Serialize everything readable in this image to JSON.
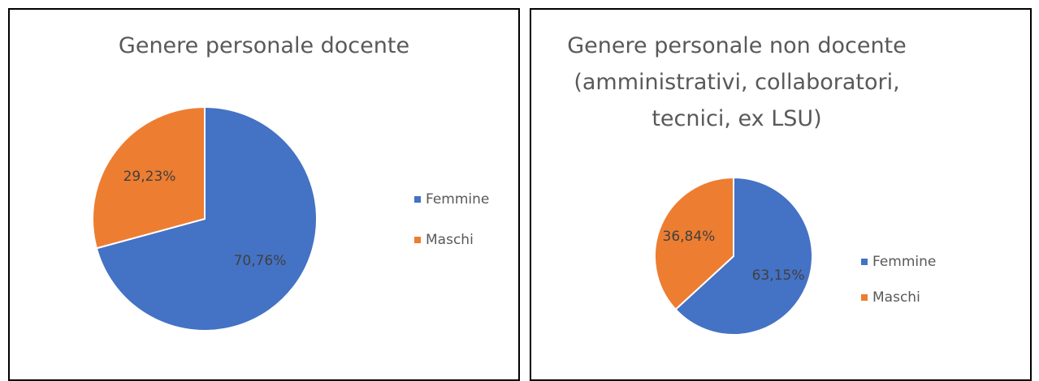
{
  "chart_data": [
    {
      "type": "pie",
      "title": "Genere personale docente",
      "categories": [
        "Femmine",
        "Maschi"
      ],
      "values": [
        70.76,
        29.23
      ],
      "value_labels": [
        "70,76%",
        "29,23%"
      ],
      "colors": [
        "#4472c4",
        "#ed7d31"
      ],
      "legend": "right"
    },
    {
      "type": "pie",
      "title": "Genere personale non docente (amministrativi, collaboratori, tecnici, ex LSU)",
      "categories": [
        "Femmine",
        "Maschi"
      ],
      "values": [
        63.15,
        36.84
      ],
      "value_labels": [
        "63,15%",
        "36,84%"
      ],
      "colors": [
        "#4472c4",
        "#ed7d31"
      ],
      "legend": "right"
    }
  ]
}
